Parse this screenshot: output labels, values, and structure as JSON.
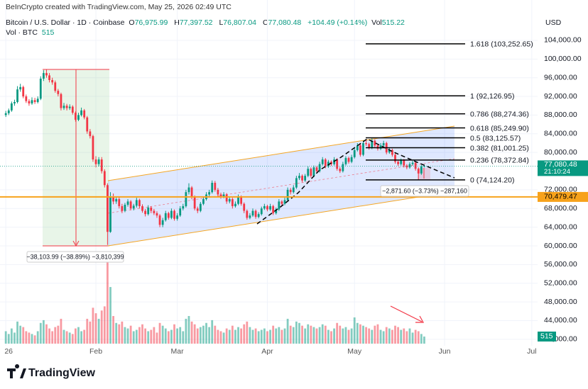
{
  "header": {
    "credit": "BeInCrypto created with TradingView.com, May 25, 2026 02:49 UTC",
    "symbol": "Bitcoin / U.S. Dollar · 1D · Coinbase",
    "ohlc": [
      {
        "key": "O",
        "value": "76,975.99"
      },
      {
        "key": "H",
        "value": "77,397.52"
      },
      {
        "key": "L",
        "value": "76,807.04"
      },
      {
        "key": "C",
        "value": "77,080.48"
      }
    ],
    "change": "+104.49 (+0.14%)",
    "vol_key": "Vol",
    "vol_value": "515.22",
    "vol_series": "Vol · BTC",
    "vol_series_value": "515",
    "currency": "USD"
  },
  "chart_data": {
    "type": "candlestick",
    "up_color": "#089981",
    "down_color": "#f23645",
    "xlim": [
      -2,
      183
    ],
    "xticks": [
      {
        "value": 0,
        "label": "26"
      },
      {
        "value": 31,
        "label": "Feb"
      },
      {
        "value": 59,
        "label": "Mar"
      },
      {
        "value": 90,
        "label": "Apr"
      },
      {
        "value": 120,
        "label": "May"
      },
      {
        "value": 151,
        "label": "Jun"
      },
      {
        "value": 181,
        "label": "Jul"
      }
    ],
    "ylim": [
      38500,
      108000
    ],
    "yticks": [
      {
        "value": 104000,
        "label": "104,000.00"
      },
      {
        "value": 100000,
        "label": "100,000.00"
      },
      {
        "value": 96000,
        "label": "96,000.00"
      },
      {
        "value": 92000,
        "label": "92,000.00"
      },
      {
        "value": 88000,
        "label": "88,000.00"
      },
      {
        "value": 84000,
        "label": "84,000.00"
      },
      {
        "value": 80000,
        "label": "80,000.00"
      },
      {
        "value": 72000,
        "label": "72,000.00"
      },
      {
        "value": 68000,
        "label": "68,000.00"
      },
      {
        "value": 64000,
        "label": "64,000.00"
      },
      {
        "value": 60000,
        "label": "60,000.00"
      },
      {
        "value": 56000,
        "label": "56,000.00"
      },
      {
        "value": 52000,
        "label": "52,000.00"
      },
      {
        "value": 48000,
        "label": "48,000.00"
      },
      {
        "value": 44000,
        "label": "44,000.00"
      },
      {
        "value": 40000,
        "label": "40,000.00"
      }
    ],
    "grid": true,
    "candles": [
      [
        88000,
        88900,
        87600,
        88400
      ],
      [
        88400,
        89400,
        88000,
        89000
      ],
      [
        89000,
        90900,
        88700,
        90500
      ],
      [
        90500,
        91300,
        90000,
        90800
      ],
      [
        90800,
        94200,
        90500,
        93500
      ],
      [
        93500,
        94700,
        93000,
        94000
      ],
      [
        94000,
        94300,
        91600,
        92000
      ],
      [
        92000,
        92400,
        90600,
        91000
      ],
      [
        91000,
        91400,
        90000,
        90500
      ],
      [
        90500,
        91800,
        90200,
        91200
      ],
      [
        91200,
        91700,
        90400,
        90800
      ],
      [
        90800,
        92000,
        90500,
        91500
      ],
      [
        91500,
        96300,
        91200,
        95800
      ],
      [
        95800,
        97600,
        95300,
        97000
      ],
      [
        97000,
        97800,
        96000,
        96500
      ],
      [
        96500,
        97000,
        95000,
        95500
      ],
      [
        95500,
        96000,
        94500,
        95000
      ],
      [
        95000,
        95400,
        92800,
        93200
      ],
      [
        93200,
        93600,
        92000,
        92500
      ],
      [
        92500,
        92800,
        89000,
        89500
      ],
      [
        89500,
        90600,
        89100,
        90000
      ],
      [
        90000,
        90400,
        89000,
        89500
      ],
      [
        89500,
        90300,
        89100,
        89800
      ],
      [
        89800,
        90100,
        88100,
        88500
      ],
      [
        88500,
        88800,
        86600,
        87000
      ],
      [
        87000,
        88500,
        86700,
        88000
      ],
      [
        88000,
        89600,
        87700,
        89000
      ],
      [
        89000,
        89300,
        87100,
        87500
      ],
      [
        87500,
        87800,
        84000,
        84500
      ],
      [
        84500,
        85000,
        83000,
        83500
      ],
      [
        83500,
        83800,
        78000,
        78500
      ],
      [
        78500,
        79200,
        76800,
        77500
      ],
      [
        77500,
        79000,
        77000,
        78500
      ],
      [
        78500,
        79000,
        75500,
        76000
      ],
      [
        76000,
        76400,
        72500,
        73000
      ],
      [
        73000,
        73400,
        60200,
        63000
      ],
      [
        63000,
        71500,
        62800,
        70500
      ],
      [
        70500,
        71200,
        68900,
        69500
      ],
      [
        69500,
        70600,
        69000,
        70000
      ],
      [
        70000,
        70400,
        68000,
        68500
      ],
      [
        68500,
        69000,
        67000,
        67500
      ],
      [
        67500,
        69200,
        67200,
        68800
      ],
      [
        68800,
        70000,
        68400,
        69500
      ],
      [
        69500,
        69800,
        67600,
        68000
      ],
      [
        68000,
        69000,
        67600,
        68600
      ],
      [
        68600,
        70300,
        68200,
        69800
      ],
      [
        69800,
        70100,
        68000,
        68500
      ],
      [
        68500,
        68900,
        67100,
        67500
      ],
      [
        67500,
        67900,
        66300,
        66800
      ],
      [
        66800,
        68700,
        66500,
        68200
      ],
      [
        68200,
        68500,
        67000,
        67500
      ],
      [
        67500,
        67900,
        66600,
        67000
      ],
      [
        67000,
        67400,
        66000,
        66500
      ],
      [
        66500,
        66800,
        64000,
        64500
      ],
      [
        64500,
        66000,
        64000,
        65500
      ],
      [
        65500,
        67500,
        65200,
        67000
      ],
      [
        67000,
        67300,
        65600,
        66000
      ],
      [
        66000,
        68000,
        65700,
        67500
      ],
      [
        67500,
        67800,
        65400,
        65800
      ],
      [
        65800,
        67000,
        65400,
        66500
      ],
      [
        66500,
        68500,
        66200,
        68000
      ],
      [
        68000,
        69000,
        67600,
        68500
      ],
      [
        68500,
        72000,
        68200,
        71500
      ],
      [
        71500,
        73400,
        71000,
        72500
      ],
      [
        72500,
        72800,
        70000,
        70500
      ],
      [
        70500,
        70800,
        67600,
        68000
      ],
      [
        68000,
        68400,
        67000,
        67500
      ],
      [
        67500,
        69400,
        67200,
        69000
      ],
      [
        69000,
        70500,
        68700,
        70000
      ],
      [
        70000,
        71500,
        69700,
        71000
      ],
      [
        71000,
        72000,
        70600,
        71500
      ],
      [
        71500,
        74000,
        71200,
        73500
      ],
      [
        73500,
        73900,
        71600,
        72000
      ],
      [
        72000,
        72400,
        70600,
        71000
      ],
      [
        71000,
        71400,
        70100,
        70500
      ],
      [
        70500,
        71500,
        70200,
        71000
      ],
      [
        71000,
        71300,
        69000,
        69500
      ],
      [
        69500,
        70500,
        69100,
        70000
      ],
      [
        70000,
        70300,
        68000,
        68500
      ],
      [
        68500,
        69500,
        68200,
        69000
      ],
      [
        69000,
        71000,
        68700,
        70500
      ],
      [
        70500,
        70800,
        68600,
        69000
      ],
      [
        69000,
        69300,
        67000,
        67500
      ],
      [
        67500,
        67800,
        65600,
        66000
      ],
      [
        66000,
        67000,
        65700,
        66500
      ],
      [
        66500,
        68000,
        66200,
        67500
      ],
      [
        67500,
        67800,
        65800,
        66200
      ],
      [
        66200,
        67200,
        65900,
        66800
      ],
      [
        66800,
        68400,
        66500,
        68000
      ],
      [
        68000,
        69000,
        67700,
        68500
      ],
      [
        68500,
        68800,
        67400,
        67800
      ],
      [
        67800,
        69000,
        67500,
        68500
      ],
      [
        68500,
        68800,
        66600,
        67000
      ],
      [
        67000,
        68200,
        66700,
        67800
      ],
      [
        67800,
        70000,
        67500,
        69500
      ],
      [
        69500,
        69800,
        68600,
        69000
      ],
      [
        69000,
        70300,
        68700,
        69800
      ],
      [
        69800,
        72500,
        69500,
        72000
      ],
      [
        72000,
        72400,
        71000,
        71500
      ],
      [
        71500,
        73000,
        71200,
        72500
      ],
      [
        72500,
        75000,
        72200,
        74500
      ],
      [
        74500,
        75600,
        74100,
        75000
      ],
      [
        75000,
        75300,
        73600,
        74000
      ],
      [
        74000,
        75400,
        73700,
        75000
      ],
      [
        75000,
        77000,
        74700,
        76500
      ],
      [
        76500,
        76800,
        74600,
        75000
      ],
      [
        75000,
        77200,
        74700,
        76800
      ],
      [
        76800,
        77100,
        75600,
        76000
      ],
      [
        76000,
        78000,
        75700,
        77500
      ],
      [
        77500,
        79000,
        77200,
        78500
      ],
      [
        78500,
        78800,
        76600,
        77000
      ],
      [
        77000,
        78400,
        76700,
        78000
      ],
      [
        78000,
        78300,
        77100,
        77500
      ],
      [
        77500,
        79000,
        77200,
        78500
      ],
      [
        78500,
        78800,
        76100,
        76500
      ],
      [
        76500,
        76900,
        75600,
        76000
      ],
      [
        76000,
        78000,
        75700,
        77500
      ],
      [
        77500,
        79200,
        77200,
        78800
      ],
      [
        78800,
        79100,
        77600,
        78000
      ],
      [
        78000,
        79500,
        77700,
        79000
      ],
      [
        79000,
        81000,
        78700,
        80500
      ],
      [
        80500,
        82000,
        80200,
        81500
      ],
      [
        81500,
        81800,
        79100,
        79500
      ],
      [
        79500,
        82500,
        79200,
        82000
      ],
      [
        82000,
        82800,
        81400,
        81800
      ],
      [
        81800,
        82100,
        80600,
        81000
      ],
      [
        81000,
        83000,
        80700,
        82500
      ],
      [
        82500,
        82800,
        81100,
        81500
      ],
      [
        81500,
        81800,
        80400,
        80800
      ],
      [
        80800,
        82000,
        80500,
        81500
      ],
      [
        81500,
        82500,
        81200,
        82000
      ],
      [
        82000,
        82300,
        79600,
        80000
      ],
      [
        80000,
        81000,
        79700,
        80500
      ],
      [
        80500,
        80800,
        79100,
        79500
      ],
      [
        79500,
        79800,
        77600,
        78000
      ],
      [
        78000,
        78400,
        77100,
        77500
      ],
      [
        77500,
        78700,
        77200,
        78300
      ],
      [
        78300,
        78600,
        76800,
        77200
      ],
      [
        77200,
        77500,
        76400,
        76800
      ],
      [
        76800,
        77900,
        76500,
        77500
      ],
      [
        77500,
        78200,
        77200,
        77800
      ],
      [
        77800,
        78100,
        76100,
        76500
      ],
      [
        76500,
        76800,
        74124.2,
        75500
      ],
      [
        75500,
        77300,
        75200,
        76975.99
      ],
      [
        76975.99,
        77397.52,
        76807.04,
        77080.48
      ]
    ],
    "volume": [
      900,
      700,
      1100,
      800,
      1600,
      1300,
      1200,
      900,
      800,
      700,
      600,
      900,
      1500,
      1700,
      1400,
      1100,
      900,
      1200,
      1300,
      1800,
      1000,
      900,
      800,
      700,
      1100,
      1200,
      900,
      1000,
      1800,
      1600,
      2600,
      2200,
      1800,
      2400,
      2700,
      5900,
      4100,
      2000,
      1500,
      1400,
      1600,
      1200,
      1100,
      1300,
      900,
      1000,
      1200,
      1400,
      1100,
      900,
      1000,
      1200,
      800,
      1500,
      1300,
      1100,
      900,
      1000,
      1400,
      1100,
      1200,
      900,
      1800,
      2000,
      1600,
      1400,
      1100,
      1200,
      1300,
      1500,
      1200,
      1700,
      1300,
      1000,
      900,
      800,
      1100,
      1000,
      1300,
      1000,
      1200,
      1100,
      1400,
      1600,
      1200,
      1000,
      1100,
      900,
      1000,
      1100,
      900,
      1000,
      1300,
      1100,
      1200,
      1000,
      1100,
      1800,
      1300,
      1200,
      1600,
      1500,
      1300,
      1100,
      1400,
      1300,
      1200,
      1100,
      1200,
      1400,
      1300,
      1000,
      900,
      1100,
      1500,
      1300,
      1100,
      1200,
      1000,
      1100,
      1900,
      1500,
      1400,
      1300,
      1200,
      1100,
      1000,
      1300,
      1400,
      1000,
      900,
      1200,
      1100,
      1000,
      1300,
      1200,
      1000,
      1100,
      900,
      1100,
      800,
      1000,
      900,
      700,
      515.22
    ],
    "volume_last_label": "515",
    "fib_levels": [
      {
        "price": 103252.65,
        "label": "1.618 (103,252.65)"
      },
      {
        "price": 92126.95,
        "label": "1 (92,126.95)"
      },
      {
        "price": 88274.36,
        "label": "0.786 (88,274.36)"
      },
      {
        "price": 85249.9,
        "label": "0.618 (85,249.90)"
      },
      {
        "price": 83125.57,
        "label": "0.5 (83,125.57)"
      },
      {
        "price": 81001.25,
        "label": "0.382 (81,001.25)"
      },
      {
        "price": 78372.84,
        "label": "0.236 (78,372.84)"
      },
      {
        "price": 74124.2,
        "label": "0 (74,124.20)"
      }
    ],
    "hline": {
      "price": 70479.47,
      "label": "70,479.47",
      "color": "#f7a21b"
    },
    "last": {
      "price": 77080.48,
      "label": "77,080.48",
      "countdown": "21:10:24"
    },
    "annotations": [
      "−38,103.99 (−38.89%) −3,810,399",
      "−2,871.60 (−3.73%) −287,160"
    ]
  },
  "footer": {
    "brand": "TradingView"
  }
}
